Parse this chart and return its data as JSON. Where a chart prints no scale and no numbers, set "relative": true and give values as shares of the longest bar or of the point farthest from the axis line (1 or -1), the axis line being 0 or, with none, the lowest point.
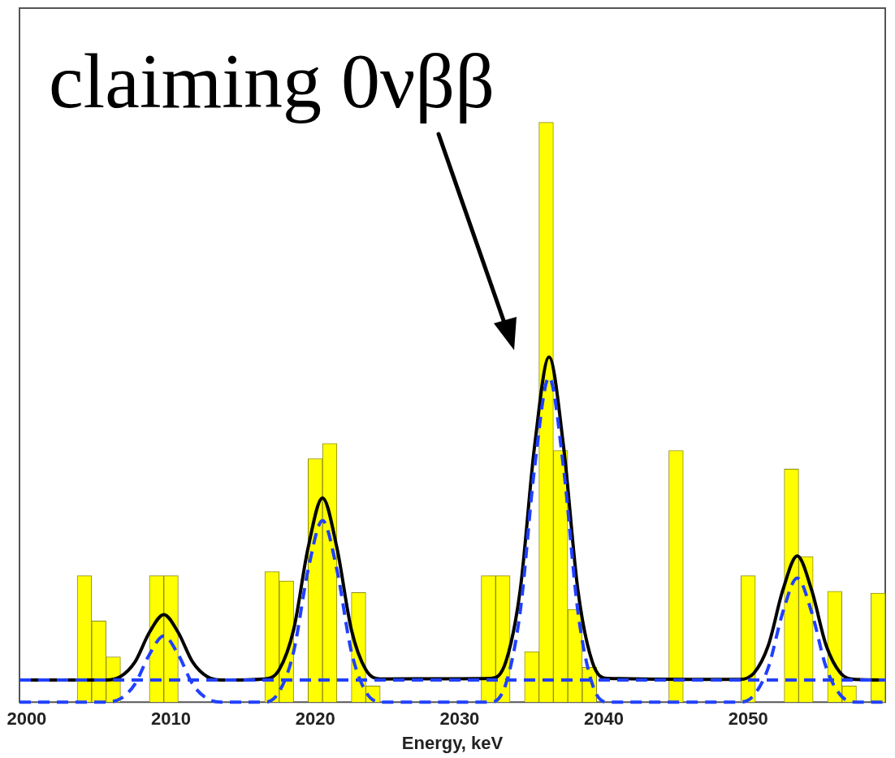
{
  "chart_data": {
    "type": "histogram",
    "relative": true,
    "xlabel": "Energy, keV",
    "xlim": [
      1999.5,
      2059.5
    ],
    "xticks": [
      2000,
      2010,
      2020,
      2030,
      2040,
      2050
    ],
    "annotations": [
      "claiming 0νββ"
    ],
    "series": [
      {
        "color": "#ffff00",
        "bins": [
          2003.5,
          2004.5,
          2005.5,
          2006.5,
          2007.5,
          2008.5,
          2009.5,
          2010.5,
          2011.5,
          2012.5,
          2013.5,
          2014.5,
          2015.5,
          2016.5,
          2017.5,
          2018.5,
          2019.5,
          2020.5,
          2021.5,
          2022.5,
          2023.5,
          2024.5,
          2025.5,
          2026.5,
          2027.5,
          2028.5,
          2029.5,
          2030.5,
          2031.5,
          2032.5,
          2033.5,
          2034.5,
          2035.5,
          2036.5,
          2037.5,
          2038.5,
          2039.5,
          2040.5,
          2041.5,
          2042.5,
          2043.5,
          2044.5,
          2045.5,
          2046.5,
          2047.5,
          2048.5,
          2049.5,
          2050.5,
          2051.5,
          2052.5,
          2053.5,
          2054.5,
          2055.5,
          2056.5,
          2057.5,
          2058.5,
          2059.5
        ],
        "values": [
          0.218,
          0.14,
          0.078,
          0,
          0,
          0.218,
          0.218,
          0,
          0,
          0,
          0,
          0,
          0,
          0.225,
          0.209,
          0,
          0.42,
          0.446,
          0,
          0.189,
          0.028,
          0,
          0,
          0,
          0,
          0,
          0,
          0,
          0.218,
          0.218,
          0,
          0.087,
          1.0,
          0.434,
          0.16,
          0.06,
          0,
          0,
          0,
          0,
          0,
          0.434,
          0,
          0,
          0,
          0,
          0.218,
          0,
          0,
          0.402,
          0.251,
          0,
          0.191,
          0.028,
          0,
          0.188
        ]
      },
      {
        "type": "line",
        "color": "#2040ff",
        "line_style": "dashed",
        "x": [
          1999.5,
          2059.5
        ],
        "values": [
          0.038,
          0.038
        ]
      },
      {
        "type": "line",
        "color": "#2040ff",
        "line_style": "dashed",
        "x": [
          1999.5,
          2005.5,
          2006.5,
          2007.5,
          2008.5,
          2009.5,
          2010.5,
          2011.5,
          2012.5,
          2013.5,
          2016.5,
          2017.5,
          2018.5,
          2019.5,
          2020.5,
          2021.5,
          2022.5,
          2023.5,
          2024.5,
          2032.2,
          2033.2,
          2034.2,
          2035.2,
          2036.2,
          2037.2,
          2038.2,
          2039.2,
          2040.2,
          2049.4,
          2050.4,
          2051.4,
          2052.4,
          2053.4,
          2054.4,
          2055.4,
          2056.4,
          2057.4,
          2059.5
        ],
        "values": [
          0,
          0,
          0.006,
          0.031,
          0.082,
          0.114,
          0.082,
          0.031,
          0.006,
          0,
          0,
          0.018,
          0.087,
          0.228,
          0.313,
          0.228,
          0.087,
          0.018,
          0,
          0,
          0.031,
          0.156,
          0.405,
          0.56,
          0.405,
          0.156,
          0.031,
          0,
          0,
          0.012,
          0.06,
          0.155,
          0.214,
          0.155,
          0.06,
          0.012,
          0,
          0
        ]
      },
      {
        "type": "line",
        "color": "#000000",
        "line_style": "solid",
        "x": [
          1999.5,
          2005.5,
          2006.5,
          2007.5,
          2008.5,
          2009.5,
          2010.5,
          2011.5,
          2012.5,
          2013.5,
          2016.5,
          2017.5,
          2018.5,
          2019.5,
          2020.5,
          2021.5,
          2022.5,
          2023.5,
          2024.5,
          2032.2,
          2033.2,
          2034.2,
          2035.2,
          2036.2,
          2037.2,
          2038.2,
          2039.2,
          2040.2,
          2049.4,
          2050.4,
          2051.4,
          2052.4,
          2053.4,
          2054.4,
          2055.4,
          2056.4,
          2057.4,
          2059.5
        ],
        "values": [
          0.038,
          0.038,
          0.044,
          0.069,
          0.12,
          0.151,
          0.12,
          0.069,
          0.044,
          0.038,
          0.04,
          0.056,
          0.125,
          0.266,
          0.352,
          0.266,
          0.125,
          0.056,
          0.04,
          0.041,
          0.069,
          0.193,
          0.442,
          0.595,
          0.442,
          0.193,
          0.069,
          0.041,
          0.039,
          0.05,
          0.098,
          0.193,
          0.252,
          0.193,
          0.098,
          0.05,
          0.039,
          0.038
        ]
      }
    ]
  }
}
